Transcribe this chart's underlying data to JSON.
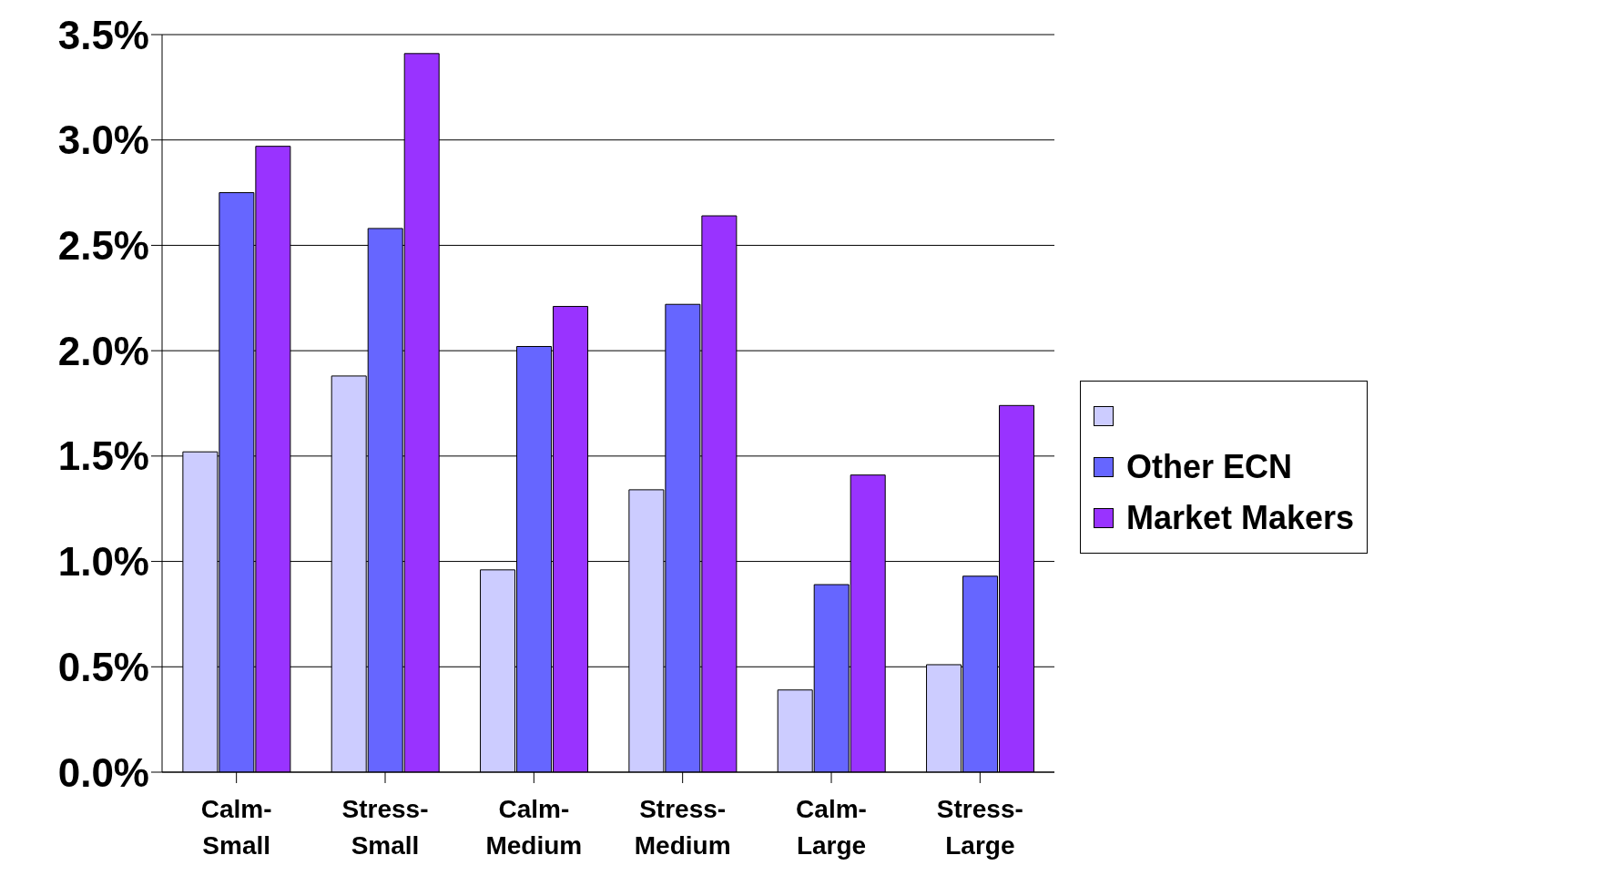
{
  "chart_data": {
    "type": "bar",
    "categories": [
      "Calm-Small",
      "Stress-Small",
      "Calm-Medium",
      "Stress-Medium",
      "Calm-Large",
      "Stress-Large"
    ],
    "series": [
      {
        "color": "#ccccff",
        "values": [
          1.52,
          1.88,
          0.96,
          1.34,
          0.39,
          0.51
        ]
      },
      {
        "name": "Other ECN",
        "color": "#6666ff",
        "values": [
          2.75,
          2.58,
          2.02,
          2.22,
          0.89,
          0.93
        ]
      },
      {
        "name": "Market Makers",
        "color": "#9933ff",
        "values": [
          2.97,
          3.41,
          2.21,
          2.64,
          1.41,
          1.74
        ]
      }
    ],
    "ylim": [
      0,
      3.5
    ],
    "yticks": [
      {
        "value": 0,
        "label": "0.0%"
      },
      {
        "value": 0.5,
        "label": "0.5%"
      },
      {
        "value": 1,
        "label": "1.0%"
      },
      {
        "value": 1.5,
        "label": "1.5%"
      },
      {
        "value": 2,
        "label": "2.0%"
      },
      {
        "value": 2.5,
        "label": "2.5%"
      },
      {
        "value": 3,
        "label": "3.0%"
      },
      {
        "value": 3.5,
        "label": "3.5%"
      }
    ],
    "grid": "y",
    "legend": "right"
  }
}
